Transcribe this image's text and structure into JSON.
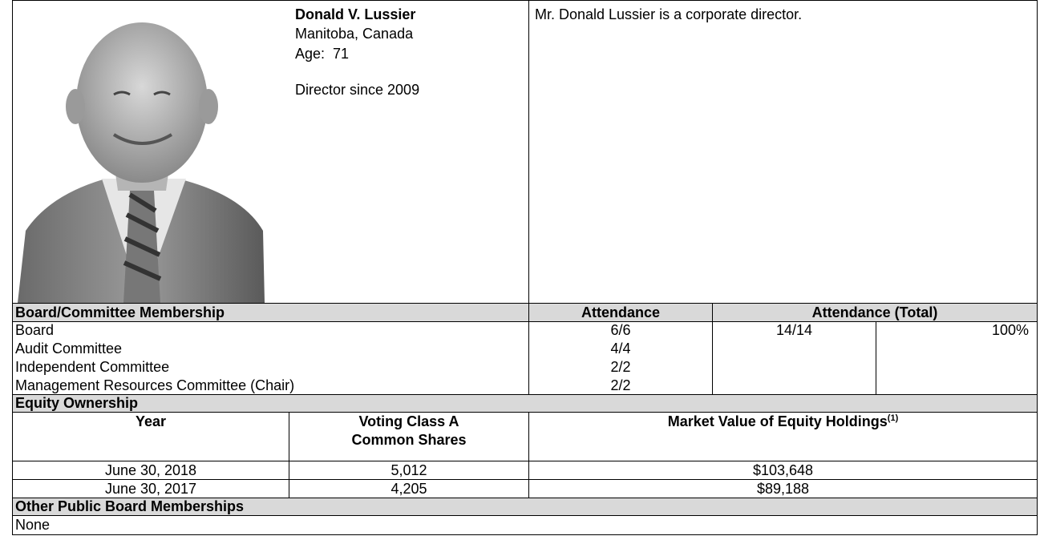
{
  "profile": {
    "name": "Donald V. Lussier",
    "location": "Manitoba, Canada",
    "age_label": "Age:",
    "age": "71",
    "director_since": "Director since 2009",
    "bio": "Mr. Donald Lussier is a corporate director."
  },
  "membership": {
    "headers": [
      "Board/Committee Membership",
      "Attendance",
      "Attendance (Total)"
    ],
    "rows": [
      [
        "Board",
        "6/6"
      ],
      [
        "Audit Committee",
        "4/4"
      ],
      [
        "Independent Committee",
        "2/2"
      ],
      [
        "Management Resources Committee (Chair)",
        "2/2"
      ]
    ],
    "total": "14/14",
    "total_percent": "100%"
  },
  "equity": {
    "title": "Equity Ownership",
    "headers": [
      "Year",
      "Voting Class A Common Shares",
      "Market Value of Equity Holdings"
    ],
    "header_note": "(1)",
    "rows": [
      [
        "June 30, 2018",
        "5,012",
        "$103,648"
      ],
      [
        "June 30, 2017",
        "4,205",
        "$89,188"
      ]
    ]
  },
  "other": {
    "title": "Other Public Board Memberships",
    "value": "None"
  }
}
